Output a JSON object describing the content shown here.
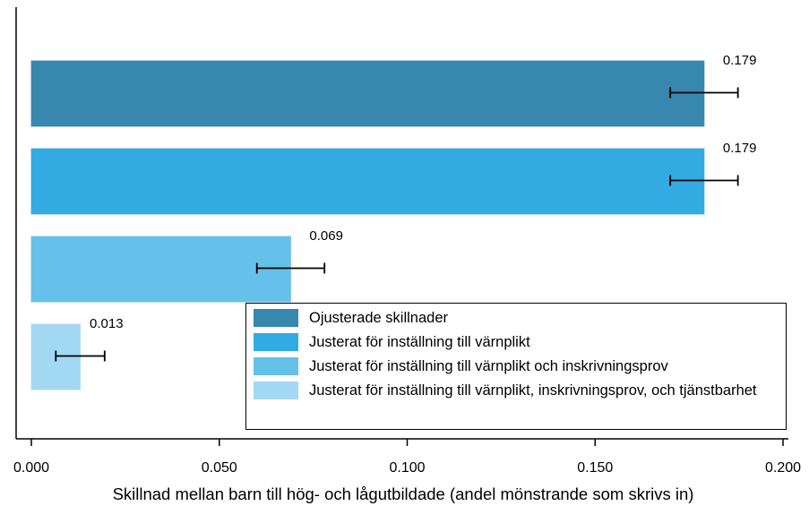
{
  "chart_data": {
    "type": "bar",
    "orientation": "horizontal",
    "xlabel": "Skillnad mellan barn till hög- och lågutbildade (andel mönstrande som skrivs in)",
    "xlim": [
      0,
      0.2
    ],
    "xticks": [
      {
        "value": 0,
        "label": "0.000"
      },
      {
        "value": 0.05,
        "label": "0.050"
      },
      {
        "value": 0.1,
        "label": "0.100"
      },
      {
        "value": 0.15,
        "label": "0.150"
      },
      {
        "value": 0.2,
        "label": "0.200"
      }
    ],
    "legend": "lower right",
    "series": [
      {
        "name": "Ojusterade skillnader",
        "color": "#3787ae",
        "values": [
          0.179
        ],
        "errors": [
          0.009
        ]
      },
      {
        "name": "Justerat för inställning till värnplikt",
        "color": "#33abe2",
        "values": [
          0.179
        ],
        "errors": [
          0.009
        ]
      },
      {
        "name": "Justerat för inställning till värnplikt och inskrivningsprov",
        "color": "#66c1ea",
        "values": [
          0.069
        ],
        "errors": [
          0.009
        ]
      },
      {
        "name": "Justerat för inställning till värnplikt, inskrivningsprov, och tjänstbarhet",
        "color": "#a3d8f3",
        "values": [
          0.013
        ],
        "errors": [
          0.0065
        ]
      }
    ]
  }
}
